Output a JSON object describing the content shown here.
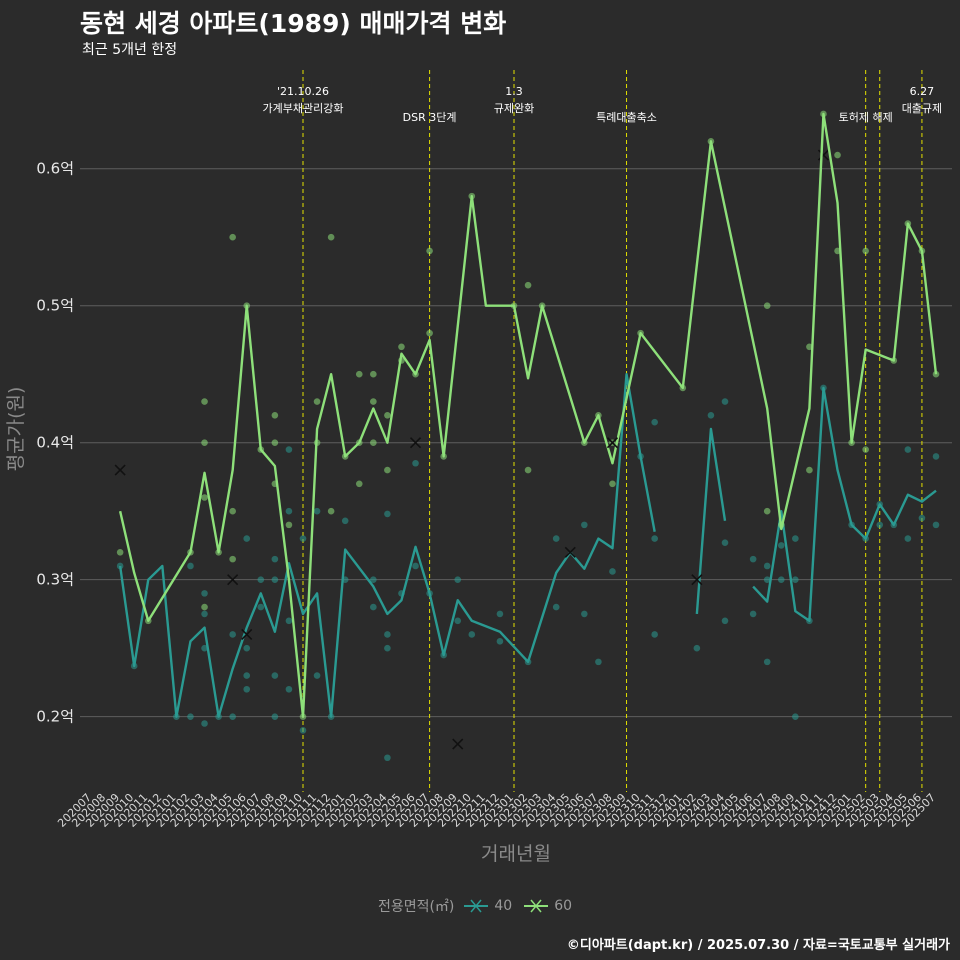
{
  "title": "동현 세경 아파트(1989) 매매가격 변화",
  "subtitle": "최근 5개년 한정",
  "caption": "©디아파트(dapt.kr) / 2025.07.30 / 자료=국토교통부 실거래가",
  "legend": {
    "title": "전용면적(㎡)",
    "items": [
      {
        "label": "40",
        "color": "#2a9a92"
      },
      {
        "label": "60",
        "color": "#8ee07a"
      }
    ]
  },
  "chart_data": {
    "type": "line",
    "xlabel": "거래년월",
    "ylabel": "평균가(원)",
    "ylim": [
      0.145,
      0.675
    ],
    "yticks": [
      {
        "value": 0.2,
        "label": "0.2억"
      },
      {
        "value": 0.3,
        "label": "0.3억"
      },
      {
        "value": 0.4,
        "label": "0.4억"
      },
      {
        "value": 0.5,
        "label": "0.5억"
      },
      {
        "value": 0.6,
        "label": "0.6억"
      }
    ],
    "grid": true,
    "legend_position": "bottom",
    "categories": [
      "202007",
      "202008",
      "202009",
      "202010",
      "202011",
      "202012",
      "202101",
      "202102",
      "202103",
      "202104",
      "202105",
      "202106",
      "202107",
      "202108",
      "202109",
      "202110",
      "202111",
      "202112",
      "202201",
      "202202",
      "202203",
      "202204",
      "202205",
      "202206",
      "202207",
      "202208",
      "202209",
      "202210",
      "202211",
      "202212",
      "202301",
      "202302",
      "202303",
      "202304",
      "202305",
      "202306",
      "202307",
      "202308",
      "202309",
      "202310",
      "202311",
      "202312",
      "202401",
      "202402",
      "202403",
      "202404",
      "202405",
      "202406",
      "202407",
      "202408",
      "202409",
      "202410",
      "202411",
      "202412",
      "202501",
      "202502",
      "202503",
      "202504",
      "202505",
      "202506",
      "202507"
    ],
    "events": [
      {
        "x": "202110",
        "label": "'21.10.26\n가계부채관리강화"
      },
      {
        "x": "202207",
        "label": "DSR 3단계"
      },
      {
        "x": "202301",
        "label": "1.3\n규제완화"
      },
      {
        "x": "202309",
        "label": "특례대출축소"
      },
      {
        "x": "202502",
        "label": "토허제 해제"
      },
      {
        "x": "202503",
        "label": ""
      },
      {
        "x": "202506",
        "label": "6.27\n대출규제"
      }
    ],
    "series": [
      {
        "name": "40",
        "color": "#2a9a92",
        "points": [
          [
            "202009",
            0.31
          ],
          [
            "202010",
            0.237
          ],
          [
            "202011",
            0.3
          ],
          [
            "202012",
            0.31
          ],
          [
            "202101",
            0.2
          ],
          [
            "202102",
            0.255
          ],
          [
            "202103",
            0.265
          ],
          [
            "202104",
            0.2
          ],
          [
            "202105",
            0.235
          ],
          [
            "202106",
            0.265
          ],
          [
            "202107",
            0.29
          ],
          [
            "202108",
            0.262
          ],
          [
            "202109",
            0.312
          ],
          [
            "202110",
            0.275
          ],
          [
            "202111",
            0.29
          ],
          [
            "202112",
            0.2
          ],
          [
            "202201",
            0.322
          ],
          [
            "202203",
            0.295
          ],
          [
            "202204",
            0.275
          ],
          [
            "202205",
            0.285
          ],
          [
            "202206",
            0.324
          ],
          [
            "202207",
            0.29
          ],
          [
            "202208",
            0.245
          ],
          [
            "202209",
            0.285
          ],
          [
            "202210",
            0.27
          ],
          [
            "202212",
            0.262
          ],
          [
            "202302",
            0.24
          ],
          [
            "202304",
            0.305
          ],
          [
            "202305",
            0.32
          ],
          [
            "202306",
            0.308
          ],
          [
            "202307",
            0.33
          ],
          [
            "202308",
            0.323
          ],
          [
            "202309",
            0.45
          ],
          [
            "202310",
            0.39
          ],
          [
            "202311",
            0.335
          ],
          null,
          [
            "202402",
            0.275
          ],
          [
            "202403",
            0.41
          ],
          [
            "202404",
            0.343
          ],
          null,
          [
            "202406",
            0.295
          ],
          [
            "202407",
            0.284
          ],
          [
            "202408",
            0.35
          ],
          [
            "202409",
            0.277
          ],
          [
            "202410",
            0.27
          ],
          [
            "202411",
            0.44
          ],
          [
            "202412",
            0.38
          ],
          [
            "202501",
            0.34
          ],
          [
            "202502",
            0.33
          ],
          [
            "202503",
            0.355
          ],
          [
            "202504",
            0.34
          ],
          [
            "202505",
            0.362
          ],
          [
            "202506",
            0.357
          ],
          [
            "202507",
            0.365
          ]
        ],
        "scatter": [
          [
            "202009",
            0.31
          ],
          [
            "202010",
            0.237
          ],
          [
            "202101",
            0.2
          ],
          [
            "202102",
            0.31
          ],
          [
            "202102",
            0.2
          ],
          [
            "202103",
            0.29
          ],
          [
            "202103",
            0.275
          ],
          [
            "202103",
            0.25
          ],
          [
            "202103",
            0.195
          ],
          [
            "202104",
            0.2
          ],
          [
            "202105",
            0.26
          ],
          [
            "202105",
            0.2
          ],
          [
            "202106",
            0.33
          ],
          [
            "202106",
            0.25
          ],
          [
            "202106",
            0.23
          ],
          [
            "202106",
            0.22
          ],
          [
            "202107",
            0.3
          ],
          [
            "202107",
            0.28
          ],
          [
            "202108",
            0.315
          ],
          [
            "202108",
            0.3
          ],
          [
            "202108",
            0.23
          ],
          [
            "202108",
            0.2
          ],
          [
            "202109",
            0.395
          ],
          [
            "202109",
            0.35
          ],
          [
            "202109",
            0.27
          ],
          [
            "202109",
            0.22
          ],
          [
            "202110",
            0.33
          ],
          [
            "202110",
            0.19
          ],
          [
            "202111",
            0.35
          ],
          [
            "202111",
            0.23
          ],
          [
            "202112",
            0.2
          ],
          [
            "202201",
            0.343
          ],
          [
            "202201",
            0.3
          ],
          [
            "202203",
            0.3
          ],
          [
            "202203",
            0.28
          ],
          [
            "202204",
            0.348
          ],
          [
            "202204",
            0.26
          ],
          [
            "202204",
            0.25
          ],
          [
            "202204",
            0.17
          ],
          [
            "202205",
            0.29
          ],
          [
            "202206",
            0.385
          ],
          [
            "202206",
            0.31
          ],
          [
            "202207",
            0.29
          ],
          [
            "202208",
            0.245
          ],
          [
            "202209",
            0.3
          ],
          [
            "202209",
            0.27
          ],
          [
            "202210",
            0.26
          ],
          [
            "202212",
            0.275
          ],
          [
            "202212",
            0.255
          ],
          [
            "202302",
            0.24
          ],
          [
            "202304",
            0.33
          ],
          [
            "202304",
            0.28
          ],
          [
            "202306",
            0.34
          ],
          [
            "202306",
            0.275
          ],
          [
            "202307",
            0.24
          ],
          [
            "202308",
            0.306
          ],
          [
            "202310",
            0.39
          ],
          [
            "202311",
            0.33
          ],
          [
            "202311",
            0.415
          ],
          [
            "202311",
            0.26
          ],
          [
            "202402",
            0.25
          ],
          [
            "202403",
            0.42
          ],
          [
            "202404",
            0.43
          ],
          [
            "202404",
            0.327
          ],
          [
            "202404",
            0.27
          ],
          [
            "202406",
            0.315
          ],
          [
            "202406",
            0.275
          ],
          [
            "202407",
            0.3
          ],
          [
            "202407",
            0.31
          ],
          [
            "202407",
            0.24
          ],
          [
            "202408",
            0.325
          ],
          [
            "202408",
            0.3
          ],
          [
            "202409",
            0.33
          ],
          [
            "202409",
            0.3
          ],
          [
            "202409",
            0.2
          ],
          [
            "202410",
            0.27
          ],
          [
            "202411",
            0.44
          ],
          [
            "202501",
            0.34
          ],
          [
            "202502",
            0.33
          ],
          [
            "202503",
            0.355
          ],
          [
            "202503",
            0.34
          ],
          [
            "202504",
            0.34
          ],
          [
            "202505",
            0.395
          ],
          [
            "202505",
            0.33
          ],
          [
            "202506",
            0.345
          ],
          [
            "202507",
            0.39
          ],
          [
            "202507",
            0.34
          ]
        ],
        "markers": [
          [
            "202106",
            0.26
          ],
          [
            "202209",
            0.18
          ],
          [
            "202305",
            0.32
          ],
          [
            "202402",
            0.3
          ],
          [
            "202411",
            0.61
          ]
        ]
      },
      {
        "name": "60",
        "color": "#8ee07a",
        "points": [
          [
            "202009",
            0.35
          ],
          [
            "202010",
            0.305
          ],
          [
            "202011",
            0.27
          ],
          [
            "202102",
            0.32
          ],
          [
            "202103",
            0.378
          ],
          [
            "202104",
            0.32
          ],
          [
            "202105",
            0.38
          ],
          [
            "202106",
            0.5
          ],
          [
            "202107",
            0.395
          ],
          [
            "202108",
            0.383
          ],
          [
            "202109",
            0.3
          ],
          [
            "202110",
            0.2
          ],
          [
            "202111",
            0.41
          ],
          [
            "202112",
            0.45
          ],
          [
            "202201",
            0.39
          ],
          [
            "202202",
            0.4
          ],
          [
            "202203",
            0.425
          ],
          [
            "202204",
            0.4
          ],
          [
            "202205",
            0.465
          ],
          [
            "202206",
            0.45
          ],
          [
            "202207",
            0.475
          ],
          [
            "202208",
            0.39
          ],
          [
            "202210",
            0.58
          ],
          [
            "202211",
            0.5
          ],
          [
            "202301",
            0.5
          ],
          [
            "202302",
            0.447
          ],
          [
            "202303",
            0.5
          ],
          [
            "202306",
            0.4
          ],
          [
            "202307",
            0.42
          ],
          [
            "202308",
            0.385
          ],
          [
            "202310",
            0.48
          ],
          [
            "202401",
            0.44
          ],
          [
            "202403",
            0.62
          ],
          [
            "202407",
            0.425
          ],
          [
            "202408",
            0.337
          ],
          [
            "202410",
            0.425
          ],
          [
            "202411",
            0.64
          ],
          [
            "202412",
            0.575
          ],
          [
            "202501",
            0.4
          ],
          [
            "202502",
            0.468
          ],
          [
            "202504",
            0.46
          ],
          [
            "202505",
            0.56
          ],
          [
            "202506",
            0.54
          ],
          [
            "202507",
            0.45
          ]
        ],
        "scatter": [
          [
            "202009",
            0.32
          ],
          [
            "202011",
            0.27
          ],
          [
            "202102",
            0.32
          ],
          [
            "202103",
            0.43
          ],
          [
            "202103",
            0.4
          ],
          [
            "202103",
            0.36
          ],
          [
            "202103",
            0.28
          ],
          [
            "202104",
            0.32
          ],
          [
            "202105",
            0.55
          ],
          [
            "202105",
            0.35
          ],
          [
            "202105",
            0.315
          ],
          [
            "202106",
            0.5
          ],
          [
            "202107",
            0.395
          ],
          [
            "202108",
            0.42
          ],
          [
            "202108",
            0.4
          ],
          [
            "202108",
            0.37
          ],
          [
            "202109",
            0.34
          ],
          [
            "202110",
            0.2
          ],
          [
            "202111",
            0.43
          ],
          [
            "202111",
            0.4
          ],
          [
            "202112",
            0.55
          ],
          [
            "202112",
            0.35
          ],
          [
            "202201",
            0.39
          ],
          [
            "202202",
            0.45
          ],
          [
            "202202",
            0.4
          ],
          [
            "202202",
            0.37
          ],
          [
            "202203",
            0.45
          ],
          [
            "202203",
            0.43
          ],
          [
            "202203",
            0.4
          ],
          [
            "202204",
            0.42
          ],
          [
            "202204",
            0.38
          ],
          [
            "202205",
            0.47
          ],
          [
            "202205",
            0.46
          ],
          [
            "202206",
            0.45
          ],
          [
            "202207",
            0.54
          ],
          [
            "202207",
            0.48
          ],
          [
            "202208",
            0.39
          ],
          [
            "202210",
            0.58
          ],
          [
            "202301",
            0.5
          ],
          [
            "202302",
            0.515
          ],
          [
            "202302",
            0.38
          ],
          [
            "202303",
            0.5
          ],
          [
            "202306",
            0.4
          ],
          [
            "202307",
            0.42
          ],
          [
            "202308",
            0.4
          ],
          [
            "202308",
            0.37
          ],
          [
            "202310",
            0.48
          ],
          [
            "202401",
            0.44
          ],
          [
            "202403",
            0.62
          ],
          [
            "202407",
            0.5
          ],
          [
            "202407",
            0.35
          ],
          [
            "202408",
            0.34
          ],
          [
            "202410",
            0.47
          ],
          [
            "202410",
            0.38
          ],
          [
            "202411",
            0.64
          ],
          [
            "202412",
            0.61
          ],
          [
            "202412",
            0.54
          ],
          [
            "202501",
            0.4
          ],
          [
            "202502",
            0.54
          ],
          [
            "202502",
            0.395
          ],
          [
            "202504",
            0.46
          ],
          [
            "202505",
            0.56
          ],
          [
            "202506",
            0.54
          ],
          [
            "202507",
            0.45
          ]
        ],
        "markers": [
          [
            "202009",
            0.38
          ],
          [
            "202105",
            0.3
          ],
          [
            "202206",
            0.4
          ],
          [
            "202308",
            0.4
          ]
        ]
      }
    ]
  }
}
